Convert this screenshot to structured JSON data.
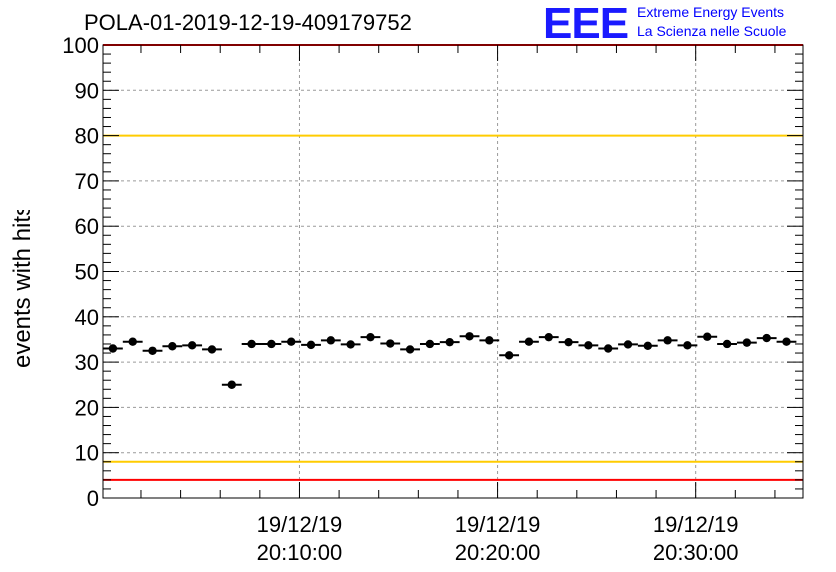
{
  "title": "POLA-01-2019-12-19-409179752",
  "logo": {
    "mark": "EEE",
    "line1": "Extreme Energy Events",
    "line2": "La Scienza nelle Scuole"
  },
  "colors": {
    "marker": "#000000",
    "upper_limit": "#ffcc00",
    "lower_limit": "#ffcc00",
    "bounds": "#ff0000",
    "grid": "#9a9a9a",
    "logo": "#0000ff"
  },
  "chart_data": {
    "type": "scatter",
    "title": "POLA-01-2019-12-19-409179752",
    "ylabel": "Rate events with hits [Hz]",
    "xlabel": "",
    "ylim": [
      0,
      100
    ],
    "yticks": [
      0,
      10,
      20,
      30,
      40,
      50,
      60,
      70,
      80,
      90,
      100
    ],
    "xlim": [
      "19/12/19 20:00:05",
      "19/12/19 20:35:25"
    ],
    "xticks": [
      {
        "date": "19/12/19",
        "time": "20:10:00"
      },
      {
        "date": "19/12/19",
        "time": "20:20:00"
      },
      {
        "date": "19/12/19",
        "time": "20:30:00"
      }
    ],
    "grid": true,
    "horizontal_lines": [
      {
        "y": 100,
        "color": "#ff0000"
      },
      {
        "y": 80,
        "color": "#ffcc00"
      },
      {
        "y": 8,
        "color": "#ffcc00"
      },
      {
        "y": 4,
        "color": "#ff0000"
      }
    ],
    "bin_width_seconds": 60,
    "series": [
      {
        "x": [
          "20:00:05",
          "20:01:05",
          "20:02:05",
          "20:03:05",
          "20:04:05",
          "20:05:05",
          "20:06:05",
          "20:07:05",
          "20:08:05",
          "20:09:05",
          "20:10:05",
          "20:11:05",
          "20:12:05",
          "20:13:05",
          "20:14:05",
          "20:15:05",
          "20:16:05",
          "20:17:05",
          "20:18:05",
          "20:19:05",
          "20:20:05",
          "20:21:05",
          "20:22:05",
          "20:23:05",
          "20:24:05",
          "20:25:05",
          "20:26:05",
          "20:27:05",
          "20:28:05",
          "20:29:05",
          "20:30:05",
          "20:31:05",
          "20:32:05",
          "20:33:05",
          "20:34:05"
        ],
        "values": [
          33.0,
          34.5,
          32.5,
          33.5,
          33.7,
          32.8,
          25.0,
          34.0,
          34.0,
          34.5,
          33.8,
          34.8,
          33.9,
          35.5,
          34.1,
          32.8,
          34.0,
          34.4,
          35.7,
          34.8,
          31.5,
          34.5,
          35.5,
          34.4,
          33.7,
          33.0,
          33.9,
          33.6,
          34.8,
          33.7,
          35.6,
          34.0,
          34.3,
          35.3,
          34.5
        ]
      }
    ]
  }
}
